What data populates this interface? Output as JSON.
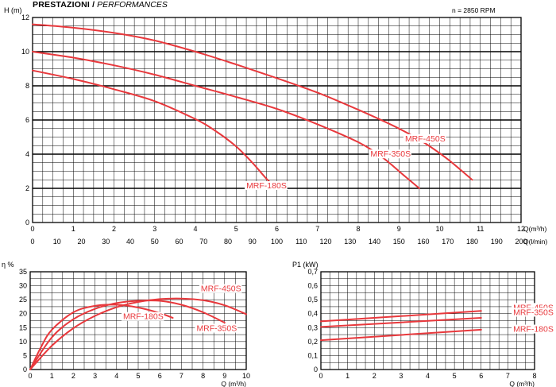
{
  "header": {
    "title_bold": "PRESTAZIONI /",
    "title_italic": "PERFORMANCES",
    "speed_label": "n = 2850 RPM"
  },
  "colors": {
    "curve": "#e8383c",
    "grid_major": "#000000",
    "grid_minor": "#000000"
  },
  "chart_data": [
    {
      "id": "head",
      "type": "line",
      "ylabel": "H (m)",
      "xlabel": "Q(m³/h)",
      "xlabel2": "Q(l/min)",
      "xlim": [
        0,
        12
      ],
      "ylim": [
        0,
        12
      ],
      "xticks": [
        "0",
        "1",
        "2",
        "3",
        "4",
        "5",
        "6",
        "7",
        "8",
        "9",
        "10",
        "11",
        "12"
      ],
      "x2ticks": [
        "0",
        "10",
        "20",
        "30",
        "40",
        "50",
        "60",
        "70",
        "80",
        "90",
        "100",
        "110",
        "120",
        "130",
        "140",
        "150",
        "160",
        "170",
        "180",
        "190",
        "200"
      ],
      "yticks": [
        "0",
        "2",
        "4",
        "6",
        "8",
        "10",
        "12"
      ],
      "series": [
        {
          "name": "MRF-450S",
          "label_at": [
            9.15,
            4.75
          ],
          "points": [
            [
              0,
              11.6
            ],
            [
              1,
              11.4
            ],
            [
              2,
              11.1
            ],
            [
              3,
              10.65
            ],
            [
              4,
              10.0
            ],
            [
              5,
              9.25
            ],
            [
              6,
              8.45
            ],
            [
              7,
              7.6
            ],
            [
              8,
              6.6
            ],
            [
              9,
              5.5
            ],
            [
              9.6,
              4.7
            ],
            [
              10.2,
              3.7
            ],
            [
              10.7,
              2.7
            ],
            [
              10.8,
              2.5
            ]
          ]
        },
        {
          "name": "MRF-350S",
          "label_at": [
            8.3,
            3.85
          ],
          "points": [
            [
              0,
              10.0
            ],
            [
              1,
              9.65
            ],
            [
              2,
              9.2
            ],
            [
              3,
              8.65
            ],
            [
              4,
              8.0
            ],
            [
              5,
              7.35
            ],
            [
              6,
              6.65
            ],
            [
              7,
              5.75
            ],
            [
              8,
              4.7
            ],
            [
              8.6,
              3.8
            ],
            [
              9.1,
              2.8
            ],
            [
              9.5,
              2.0
            ]
          ]
        },
        {
          "name": "MRF-180S",
          "label_at": [
            5.25,
            2.0
          ],
          "points": [
            [
              0,
              8.9
            ],
            [
              1,
              8.4
            ],
            [
              2,
              7.8
            ],
            [
              3,
              7.1
            ],
            [
              4,
              6.05
            ],
            [
              4.5,
              5.35
            ],
            [
              5,
              4.45
            ],
            [
              5.4,
              3.5
            ],
            [
              5.75,
              2.55
            ],
            [
              5.95,
              2.1
            ]
          ]
        }
      ]
    },
    {
      "id": "efficiency",
      "type": "line",
      "ylabel": "η %",
      "xlabel": "Q (m³/h)",
      "xlim": [
        0,
        10
      ],
      "ylim": [
        0,
        35
      ],
      "xticks": [
        "0",
        "1",
        "2",
        "3",
        "4",
        "5",
        "6",
        "7",
        "8",
        "9",
        "10"
      ],
      "yticks": [
        "0",
        "5",
        "10",
        "15",
        "20",
        "25",
        "30",
        "35"
      ],
      "series": [
        {
          "name": "MRF-450S",
          "label_at": [
            7.9,
            28.0
          ],
          "points": [
            [
              0,
              0
            ],
            [
              1,
              8.5
            ],
            [
              2,
              14.8
            ],
            [
              3,
              19.2
            ],
            [
              4,
              22.3
            ],
            [
              5,
              24.2
            ],
            [
              6,
              25.2
            ],
            [
              7,
              25.4
            ],
            [
              8,
              24.8
            ],
            [
              9,
              23.0
            ],
            [
              10,
              19.8
            ]
          ]
        },
        {
          "name": "MRF-350S",
          "label_at": [
            7.7,
            13.8
          ],
          "points": [
            [
              0,
              0
            ],
            [
              1,
              11.5
            ],
            [
              2,
              18.0
            ],
            [
              3,
              21.7
            ],
            [
              4,
              23.8
            ],
            [
              5,
              24.6
            ],
            [
              6,
              24.6
            ],
            [
              7,
              23.2
            ],
            [
              8,
              20.5
            ],
            [
              9,
              16.8
            ]
          ]
        },
        {
          "name": "MRF-180S",
          "label_at": [
            4.3,
            18.0
          ],
          "points": [
            [
              0,
              0
            ],
            [
              0.5,
              8.0
            ],
            [
              1,
              14.2
            ],
            [
              2,
              20.5
            ],
            [
              3,
              22.8
            ],
            [
              4,
              23.2
            ],
            [
              5,
              22.2
            ],
            [
              6,
              20.2
            ],
            [
              6.6,
              18.5
            ]
          ]
        }
      ]
    },
    {
      "id": "power",
      "type": "line",
      "ylabel": "P1 (kW)",
      "xlabel": "Q (m³/h)",
      "xlim": [
        0,
        8
      ],
      "ylim": [
        0,
        0.7
      ],
      "xticks": [
        "0",
        "1",
        "2",
        "3",
        "4",
        "5",
        "6",
        "7",
        "8"
      ],
      "yticks": [
        "0",
        "0,1",
        "0,2",
        "0,3",
        "0,4",
        "0,5",
        "0,6",
        "0,7"
      ],
      "series": [
        {
          "name": "MRF-450S",
          "label_at": [
            7.2,
            0.425
          ],
          "points": [
            [
              0,
              0.345
            ],
            [
              6,
              0.42
            ]
          ]
        },
        {
          "name": "MRF-350S",
          "label_at": [
            7.2,
            0.39
          ],
          "points": [
            [
              0,
              0.305
            ],
            [
              6,
              0.37
            ]
          ]
        },
        {
          "name": "MRF-180S",
          "label_at": [
            7.2,
            0.27
          ],
          "points": [
            [
              0,
              0.21
            ],
            [
              6,
              0.285
            ]
          ]
        }
      ]
    }
  ]
}
